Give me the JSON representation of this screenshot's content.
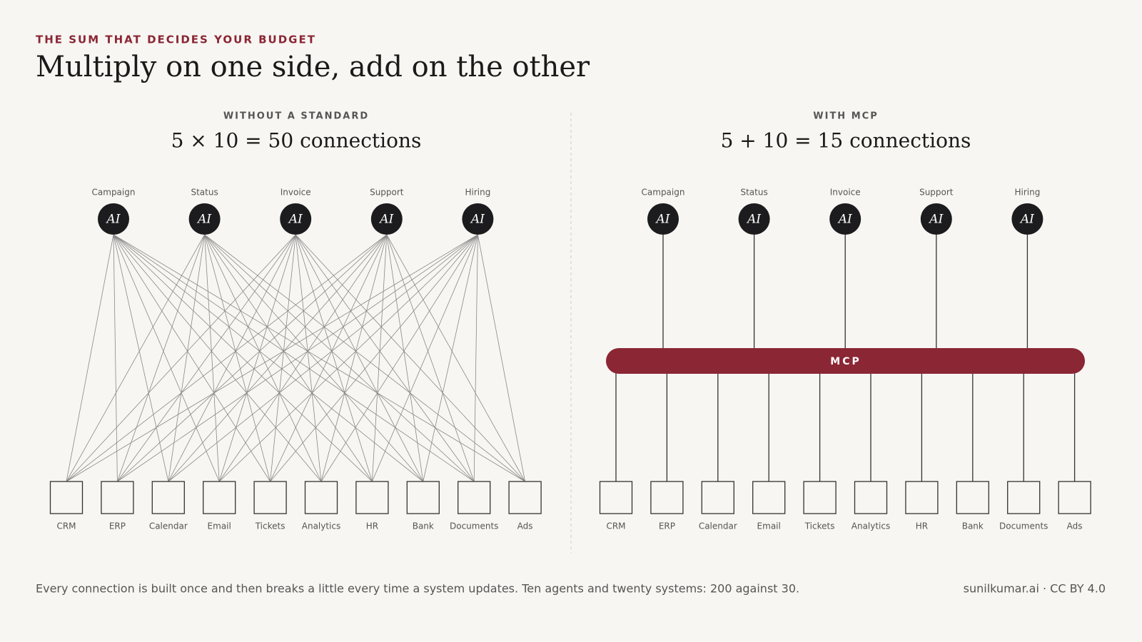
{
  "header": {
    "kicker": "THE SUM THAT DECIDES YOUR BUDGET",
    "title": "Multiply on one side, add on the other"
  },
  "left": {
    "label": "WITHOUT A STANDARD",
    "equation": "5 × 10 = 50 connections"
  },
  "right": {
    "label": "WITH MCP",
    "equation": "5 + 10 = 15 connections",
    "hub": "MCP"
  },
  "agents": [
    "Campaign",
    "Status",
    "Invoice",
    "Support",
    "Hiring"
  ],
  "agent_badge": "AI",
  "systems": [
    "CRM",
    "ERP",
    "Calendar",
    "Email",
    "Tickets",
    "Analytics",
    "HR",
    "Bank",
    "Documents",
    "Ads"
  ],
  "footer": {
    "note": "Every connection is built once and then breaks a little every time a system updates. Ten agents and twenty systems: 200 against 30.",
    "credit": "sunilkumar.ai · CC BY 4.0"
  }
}
